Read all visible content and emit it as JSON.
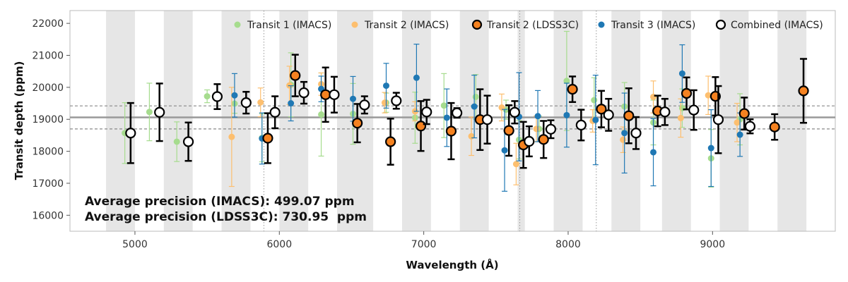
{
  "chart_data": {
    "type": "scatter",
    "xlabel": "Wavelength (Å)",
    "ylabel": "Transit depth (ppm)",
    "xlim": [
      4550,
      9850
    ],
    "ylim": [
      15500,
      22400
    ],
    "xticks": [
      5000,
      6000,
      7000,
      8000,
      9000
    ],
    "yticks": [
      16000,
      17000,
      18000,
      19000,
      20000,
      21000,
      22000
    ],
    "reference_lines": {
      "mean": 19060,
      "upper": 19420,
      "lower": 18700
    },
    "vertical_markers": [
      5893,
      7665,
      8195
    ],
    "shaded_bands": [
      [
        4800,
        5000
      ],
      [
        5200,
        5400
      ],
      [
        5600,
        5800
      ],
      [
        6000,
        6200
      ],
      [
        6400,
        6650
      ],
      [
        6850,
        7050
      ],
      [
        7250,
        7450
      ],
      [
        7650,
        7700
      ],
      [
        7900,
        8100
      ],
      [
        8300,
        8500
      ],
      [
        8650,
        8850
      ],
      [
        9050,
        9250
      ],
      [
        9450,
        9650
      ]
    ],
    "legend_position": "top-right",
    "series": [
      {
        "name": "Transit 1 (IMACS)",
        "color": "#a6dc8e",
        "points": [
          {
            "x": 4930,
            "y": 18570,
            "err": 950
          },
          {
            "x": 5100,
            "y": 19230,
            "err": 900
          },
          {
            "x": 5290,
            "y": 18300,
            "err": 620
          },
          {
            "x": 5500,
            "y": 19720,
            "err": 200
          },
          {
            "x": 5690,
            "y": 19490,
            "err": 300
          },
          {
            "x": 5880,
            "y": 18420,
            "err": 750
          },
          {
            "x": 6080,
            "y": 20080,
            "err": 1000
          },
          {
            "x": 6290,
            "y": 19150,
            "err": 1300
          },
          {
            "x": 6510,
            "y": 19170,
            "err": 950
          },
          {
            "x": 6740,
            "y": 19520,
            "err": 300
          },
          {
            "x": 6940,
            "y": 19050,
            "err": 800
          },
          {
            "x": 7140,
            "y": 19430,
            "err": 1000
          },
          {
            "x": 7360,
            "y": 19700,
            "err": 700
          },
          {
            "x": 7570,
            "y": 19300,
            "err": 300
          },
          {
            "x": 7660,
            "y": 18360,
            "err": 600
          },
          {
            "x": 7800,
            "y": 18700,
            "err": 400
          },
          {
            "x": 7990,
            "y": 20200,
            "err": 1550
          },
          {
            "x": 8180,
            "y": 19600,
            "err": 700
          },
          {
            "x": 8390,
            "y": 19400,
            "err": 750
          },
          {
            "x": 8590,
            "y": 18900,
            "err": 700
          },
          {
            "x": 8790,
            "y": 19350,
            "err": 600
          },
          {
            "x": 8990,
            "y": 17780,
            "err": 900
          },
          {
            "x": 9190,
            "y": 19000,
            "err": 800
          }
        ]
      },
      {
        "name": "Transit 2 (IMACS)",
        "color": "#fdbf6f",
        "points": [
          {
            "x": 5670,
            "y": 18450,
            "err": 1550
          },
          {
            "x": 5870,
            "y": 19530,
            "err": 450
          },
          {
            "x": 6070,
            "y": 20060,
            "err": 600
          },
          {
            "x": 6290,
            "y": 20100,
            "err": 350
          },
          {
            "x": 6730,
            "y": 19520,
            "err": 320
          },
          {
            "x": 6940,
            "y": 19250,
            "err": 300
          },
          {
            "x": 7330,
            "y": 18470,
            "err": 600
          },
          {
            "x": 7540,
            "y": 19370,
            "err": 420
          },
          {
            "x": 7640,
            "y": 17600,
            "err": 650
          },
          {
            "x": 7780,
            "y": 18700,
            "err": 400
          },
          {
            "x": 8170,
            "y": 18950,
            "err": 350
          },
          {
            "x": 8380,
            "y": 18360,
            "err": 400
          },
          {
            "x": 8590,
            "y": 19700,
            "err": 500
          },
          {
            "x": 8780,
            "y": 19040,
            "err": 600
          },
          {
            "x": 8970,
            "y": 19750,
            "err": 600
          },
          {
            "x": 9170,
            "y": 18900,
            "err": 600
          }
        ]
      },
      {
        "name": "Transit 3 (IMACS)",
        "color": "#1f78b4",
        "points": [
          {
            "x": 5690,
            "y": 19750,
            "err": 680
          },
          {
            "x": 5880,
            "y": 18400,
            "err": 800
          },
          {
            "x": 6080,
            "y": 19500,
            "err": 550
          },
          {
            "x": 6290,
            "y": 19950,
            "err": 400
          },
          {
            "x": 6510,
            "y": 19640,
            "err": 700
          },
          {
            "x": 6740,
            "y": 20050,
            "err": 700
          },
          {
            "x": 6950,
            "y": 20300,
            "err": 1050
          },
          {
            "x": 7160,
            "y": 19050,
            "err": 900
          },
          {
            "x": 7350,
            "y": 19400,
            "err": 980
          },
          {
            "x": 7560,
            "y": 18030,
            "err": 1280
          },
          {
            "x": 7660,
            "y": 19080,
            "err": 1380
          },
          {
            "x": 7790,
            "y": 19100,
            "err": 800
          },
          {
            "x": 7990,
            "y": 19130,
            "err": 1000
          },
          {
            "x": 8190,
            "y": 18980,
            "err": 1400
          },
          {
            "x": 8390,
            "y": 18570,
            "err": 1250
          },
          {
            "x": 8590,
            "y": 17970,
            "err": 1050
          },
          {
            "x": 8790,
            "y": 20430,
            "err": 900
          },
          {
            "x": 8990,
            "y": 18100,
            "err": 1200
          },
          {
            "x": 9190,
            "y": 18520,
            "err": 680
          }
        ]
      },
      {
        "name": "Transit 2 (LDSS3C)",
        "color": "#f58220",
        "points": [
          {
            "x": 5920,
            "y": 18410,
            "err": 780
          },
          {
            "x": 6110,
            "y": 20370,
            "err": 650
          },
          {
            "x": 6320,
            "y": 19770,
            "err": 850
          },
          {
            "x": 6540,
            "y": 18880,
            "err": 600
          },
          {
            "x": 6770,
            "y": 18300,
            "err": 720
          },
          {
            "x": 6980,
            "y": 18790,
            "err": 780
          },
          {
            "x": 7190,
            "y": 18630,
            "err": 880
          },
          {
            "x": 7390,
            "y": 18990,
            "err": 950
          },
          {
            "x": 7590,
            "y": 18650,
            "err": 790
          },
          {
            "x": 7690,
            "y": 18200,
            "err": 720
          },
          {
            "x": 7830,
            "y": 18370,
            "err": 580
          },
          {
            "x": 8030,
            "y": 19940,
            "err": 400
          },
          {
            "x": 8230,
            "y": 19320,
            "err": 570
          },
          {
            "x": 8420,
            "y": 19110,
            "err": 860
          },
          {
            "x": 8620,
            "y": 19260,
            "err": 480
          },
          {
            "x": 8820,
            "y": 19810,
            "err": 500
          },
          {
            "x": 9020,
            "y": 19720,
            "err": 600
          },
          {
            "x": 9220,
            "y": 19180,
            "err": 500
          },
          {
            "x": 9430,
            "y": 18760,
            "err": 400
          },
          {
            "x": 9630,
            "y": 19890,
            "err": 1000
          }
        ]
      },
      {
        "name": "Combined (IMACS)",
        "color": "#ffffff",
        "points": [
          {
            "x": 4970,
            "y": 18570,
            "err": 940
          },
          {
            "x": 5170,
            "y": 19220,
            "err": 900
          },
          {
            "x": 5370,
            "y": 18300,
            "err": 600
          },
          {
            "x": 5570,
            "y": 19710,
            "err": 390
          },
          {
            "x": 5770,
            "y": 19520,
            "err": 340
          },
          {
            "x": 5970,
            "y": 19220,
            "err": 500
          },
          {
            "x": 6170,
            "y": 19830,
            "err": 340
          },
          {
            "x": 6380,
            "y": 19770,
            "err": 560
          },
          {
            "x": 6590,
            "y": 19450,
            "err": 270
          },
          {
            "x": 6810,
            "y": 19580,
            "err": 250
          },
          {
            "x": 7020,
            "y": 19230,
            "err": 380
          },
          {
            "x": 7230,
            "y": 19200,
            "err": 150
          },
          {
            "x": 7440,
            "y": 18990,
            "err": 750
          },
          {
            "x": 7630,
            "y": 19220,
            "err": 350
          },
          {
            "x": 7730,
            "y": 18310,
            "err": 470
          },
          {
            "x": 7880,
            "y": 18690,
            "err": 280
          },
          {
            "x": 8090,
            "y": 18820,
            "err": 480
          },
          {
            "x": 8280,
            "y": 19140,
            "err": 500
          },
          {
            "x": 8470,
            "y": 18570,
            "err": 500
          },
          {
            "x": 8670,
            "y": 19230,
            "err": 410
          },
          {
            "x": 8870,
            "y": 19290,
            "err": 620
          },
          {
            "x": 9040,
            "y": 18990,
            "err": 1050
          },
          {
            "x": 9260,
            "y": 18780,
            "err": 220
          }
        ]
      }
    ],
    "annotations": [
      "Average precision (IMACS): 499.07 ppm",
      "Average precision (LDSS3C): 730.95  ppm"
    ]
  },
  "legend": [
    {
      "label": "Transit 1 (IMACS)",
      "color": "#a6dc8e",
      "style": "small"
    },
    {
      "label": "Transit 2 (IMACS)",
      "color": "#fdbf6f",
      "style": "small"
    },
    {
      "label": "Transit 2 (LDSS3C)",
      "color": "#f58220",
      "style": "large"
    },
    {
      "label": "Transit 3 (IMACS)",
      "color": "#1f78b4",
      "style": "small"
    },
    {
      "label": "Combined (IMACS)",
      "color": "#ffffff",
      "style": "large"
    }
  ]
}
